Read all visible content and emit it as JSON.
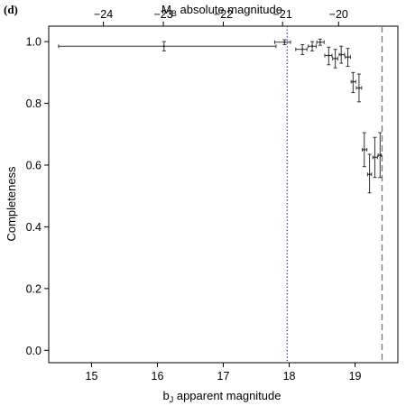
{
  "chart_data": {
    "type": "scatter",
    "panel_label": "(d)",
    "xlabel_main": "b",
    "xlabel_sub": "J",
    "xlabel_rest": " apparent magnitude",
    "top_label_main": "M",
    "top_label_sub": "B",
    "top_label_rest": " absolute magnitude",
    "ylabel": "Completeness",
    "xlim": [
      14.35,
      19.65
    ],
    "ylim": [
      -0.04,
      1.05
    ],
    "x_ticks": [
      15,
      16,
      17,
      18,
      19
    ],
    "x_tick_labels": [
      "15",
      "16",
      "17",
      "18",
      "19"
    ],
    "y_ticks": [
      0.0,
      0.2,
      0.4,
      0.6,
      0.8,
      1.0
    ],
    "y_tick_labels": [
      "0.0",
      "0.2",
      "0.4",
      "0.6",
      "0.8",
      "1.0"
    ],
    "top_axis": {
      "ticks_at_bj": [
        15.26,
        16.09,
        16.92,
        17.75,
        18.58,
        19.41
      ],
      "tick_labels": [
        "−24",
        "−23",
        "−22",
        "−21",
        "−20",
        ""
      ]
    },
    "top_tick_labels_display": [
      "−24",
      "−23",
      "−22",
      "−21",
      "−20"
    ],
    "top_tick_positions_display": [
      15.18,
      16.09,
      17.0,
      17.9,
      18.75
    ],
    "vlines": [
      {
        "x": 17.97,
        "style": "dotted",
        "color": "#3030c8"
      },
      {
        "x": 19.41,
        "style": "dashed",
        "color": "#777777"
      }
    ],
    "points": [
      {
        "x": 16.1,
        "y": 0.985,
        "xlo": 14.5,
        "xhi": 17.8,
        "ylo": 0.97,
        "yhi": 1.0
      },
      {
        "x": 17.93,
        "y": 0.998,
        "xlo": 17.78,
        "xhi": 18.02,
        "ylo": 0.99,
        "yhi": 1.006
      },
      {
        "x": 18.2,
        "y": 0.975,
        "xlo": 18.1,
        "xhi": 18.27,
        "ylo": 0.958,
        "yhi": 0.99
      },
      {
        "x": 18.35,
        "y": 0.985,
        "xlo": 18.29,
        "xhi": 18.41,
        "ylo": 0.97,
        "yhi": 1.0
      },
      {
        "x": 18.47,
        "y": 0.998,
        "xlo": 18.42,
        "xhi": 18.53,
        "ylo": 0.988,
        "yhi": 1.008
      },
      {
        "x": 18.6,
        "y": 0.955,
        "xlo": 18.54,
        "xhi": 18.65,
        "ylo": 0.925,
        "yhi": 0.982
      },
      {
        "x": 18.7,
        "y": 0.945,
        "xlo": 18.66,
        "xhi": 18.74,
        "ylo": 0.915,
        "yhi": 0.975
      },
      {
        "x": 18.79,
        "y": 0.958,
        "xlo": 18.76,
        "xhi": 18.84,
        "ylo": 0.93,
        "yhi": 0.985
      },
      {
        "x": 18.89,
        "y": 0.95,
        "xlo": 18.85,
        "xhi": 18.93,
        "ylo": 0.92,
        "yhi": 0.978
      },
      {
        "x": 18.97,
        "y": 0.87,
        "xlo": 18.94,
        "xhi": 19.01,
        "ylo": 0.835,
        "yhi": 0.9
      },
      {
        "x": 19.06,
        "y": 0.85,
        "xlo": 19.02,
        "xhi": 19.1,
        "ylo": 0.805,
        "yhi": 0.895
      },
      {
        "x": 19.14,
        "y": 0.65,
        "xlo": 19.11,
        "xhi": 19.18,
        "ylo": 0.595,
        "yhi": 0.705
      },
      {
        "x": 19.22,
        "y": 0.57,
        "xlo": 19.19,
        "xhi": 19.25,
        "ylo": 0.51,
        "yhi": 0.635
      },
      {
        "x": 19.3,
        "y": 0.625,
        "xlo": 19.27,
        "xhi": 19.34,
        "ylo": 0.56,
        "yhi": 0.69
      },
      {
        "x": 19.38,
        "y": 0.632,
        "xlo": 19.35,
        "xhi": 19.4,
        "ylo": 0.56,
        "yhi": 0.705
      }
    ]
  }
}
